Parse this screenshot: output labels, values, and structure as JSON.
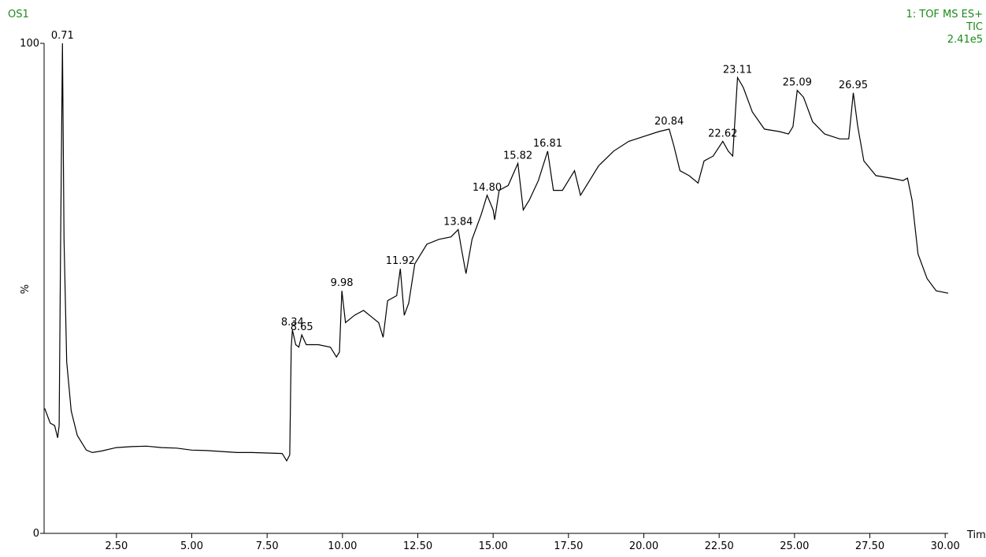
{
  "chart_data": {
    "type": "line",
    "title": "OS1",
    "subtitle": [
      "1: TOF MS ES+",
      "TIC",
      "2.41e5"
    ],
    "xlabel": "Time",
    "ylabel": "%",
    "color": "#000000",
    "xlim": [
      0.1,
      30.1
    ],
    "ylim": [
      0,
      100
    ],
    "yticks": [
      0,
      100
    ],
    "xticks": [
      {
        "value": 2.5,
        "label": "2.50"
      },
      {
        "value": 5,
        "label": "5.00"
      },
      {
        "value": 7.5,
        "label": "7.50"
      },
      {
        "value": 10,
        "label": "10.00"
      },
      {
        "value": 12.5,
        "label": "12.50"
      },
      {
        "value": 15,
        "label": "15.00"
      },
      {
        "value": 17.5,
        "label": "17.50"
      },
      {
        "value": 20,
        "label": "20.00"
      },
      {
        "value": 22.5,
        "label": "22.50"
      },
      {
        "value": 25,
        "label": "25.00"
      },
      {
        "value": 27.5,
        "label": "27.50"
      },
      {
        "value": 30,
        "label": "30.00"
      }
    ],
    "x": [
      0.12,
      0.3,
      0.45,
      0.55,
      0.6,
      0.65,
      0.71,
      0.76,
      0.85,
      1.0,
      1.2,
      1.5,
      1.7,
      2.0,
      2.5,
      3.0,
      3.5,
      4.0,
      4.5,
      5.0,
      5.5,
      6.0,
      6.5,
      7.0,
      7.5,
      8.0,
      8.15,
      8.25,
      8.3,
      8.34,
      8.45,
      8.55,
      8.65,
      8.8,
      9.2,
      9.6,
      9.8,
      9.9,
      9.98,
      10.1,
      10.4,
      10.7,
      11.0,
      11.2,
      11.35,
      11.5,
      11.8,
      11.92,
      12.05,
      12.2,
      12.4,
      12.8,
      13.2,
      13.6,
      13.84,
      13.95,
      14.1,
      14.3,
      14.6,
      14.8,
      15.0,
      15.05,
      15.2,
      15.5,
      15.82,
      16.0,
      16.2,
      16.5,
      16.81,
      17.0,
      17.3,
      17.5,
      17.7,
      17.9,
      18.2,
      18.5,
      19.0,
      19.5,
      20.0,
      20.5,
      20.84,
      21.0,
      21.2,
      21.5,
      21.8,
      22.0,
      22.3,
      22.62,
      22.8,
      22.95,
      23.11,
      23.3,
      23.6,
      24.0,
      24.5,
      24.8,
      24.95,
      25.09,
      25.3,
      25.6,
      26.0,
      26.5,
      26.8,
      26.95,
      27.1,
      27.3,
      27.7,
      28.2,
      28.6,
      28.75,
      28.9,
      29.1,
      29.4,
      29.7,
      30.1
    ],
    "values": [
      25.5,
      22.5,
      22,
      19.5,
      22,
      60,
      100,
      60,
      35,
      25,
      20,
      17,
      16.5,
      16.8,
      17.5,
      17.7,
      17.8,
      17.5,
      17.4,
      17,
      16.9,
      16.7,
      16.5,
      16.5,
      16.4,
      16.3,
      14.8,
      16,
      38,
      41.5,
      38.5,
      38,
      40.5,
      38.5,
      38.5,
      38,
      36,
      37,
      49.5,
      43,
      44.5,
      45.5,
      44,
      43,
      40,
      47.5,
      48.5,
      54,
      44.5,
      47,
      55,
      59,
      60,
      60.5,
      62,
      58,
      53,
      60,
      65,
      69,
      66,
      64,
      70,
      71,
      75.5,
      66,
      68,
      72,
      78,
      70,
      70,
      72,
      74,
      69,
      72,
      75,
      78,
      80,
      81,
      82,
      82.5,
      79,
      74,
      73,
      71.5,
      76,
      77,
      80,
      78,
      77,
      93,
      91,
      86,
      82.5,
      82,
      81.5,
      83,
      90.4,
      89,
      84,
      81.5,
      80.5,
      80.5,
      89.9,
      83,
      76,
      73,
      72.5,
      72,
      72.5,
      68,
      57,
      52,
      49.5,
      49
    ],
    "annotations": [
      {
        "label": "0.71",
        "x": 0.71,
        "y": 100
      },
      {
        "label": "8.34",
        "x": 8.34,
        "y": 41.5
      },
      {
        "label": "8.65",
        "x": 8.65,
        "y": 40.5
      },
      {
        "label": "9.98",
        "x": 9.98,
        "y": 49.5
      },
      {
        "label": "11.92",
        "x": 11.92,
        "y": 54
      },
      {
        "label": "13.84",
        "x": 13.84,
        "y": 62
      },
      {
        "label": "14.80",
        "x": 14.8,
        "y": 69
      },
      {
        "label": "15.82",
        "x": 15.82,
        "y": 75.5
      },
      {
        "label": "16.81",
        "x": 16.81,
        "y": 78
      },
      {
        "label": "20.84",
        "x": 20.84,
        "y": 82.5
      },
      {
        "label": "22.62",
        "x": 22.62,
        "y": 80
      },
      {
        "label": "23.11",
        "x": 23.11,
        "y": 93
      },
      {
        "label": "25.09",
        "x": 25.09,
        "y": 90.4
      },
      {
        "label": "26.95",
        "x": 26.95,
        "y": 89.9
      }
    ]
  }
}
